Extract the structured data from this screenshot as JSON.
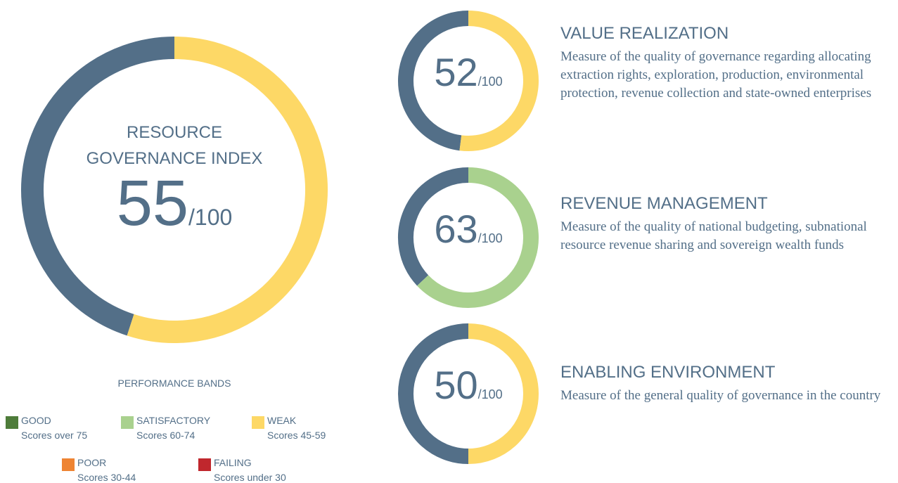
{
  "chart_data": [
    {
      "type": "donut",
      "title": "RESOURCE GOVERNANCE INDEX",
      "values": [
        55
      ],
      "scale": {
        "value": 100,
        "label": "/100"
      },
      "color": "#fdd866",
      "track_color": "#536f88"
    },
    {
      "type": "donut",
      "title": "VALUE REALIZATION",
      "description": "Measure of the quality of governance regarding allocating extraction rights, exploration, production, environmental protection, revenue collection and state-owned enterprises",
      "values": [
        52
      ],
      "scale": {
        "value": 100,
        "label": "/100"
      },
      "color": "#fdd866",
      "track_color": "#536f88"
    },
    {
      "type": "donut",
      "title": "REVENUE MANAGEMENT",
      "description": "Measure of the quality of national budgeting, subnational resource revenue sharing and sovereign wealth funds",
      "values": [
        63
      ],
      "scale": {
        "value": 100,
        "label": "/100"
      },
      "color": "#a9d18e",
      "track_color": "#536f88"
    },
    {
      "type": "donut",
      "title": "ENABLING ENVIRONMENT",
      "description": "Measure of the general quality of governance in the country",
      "values": [
        50
      ],
      "scale": {
        "value": 100,
        "label": "/100"
      },
      "color": "#fdd866",
      "track_color": "#536f88"
    }
  ],
  "legend": {
    "title": "PERFORMANCE BANDS",
    "items": [
      {
        "name": "GOOD",
        "range": "Scores over 75",
        "color": "#4e7c3a"
      },
      {
        "name": "SATISFACTORY",
        "range": "Scores 60-74",
        "color": "#a9d18e"
      },
      {
        "name": "WEAK",
        "range": "Scores 45-59",
        "color": "#fdd866"
      },
      {
        "name": "POOR",
        "range": "Scores 30-44",
        "color": "#ee8433"
      },
      {
        "name": "FAILING",
        "range": "Scores under 30",
        "color": "#c0272d"
      }
    ]
  }
}
